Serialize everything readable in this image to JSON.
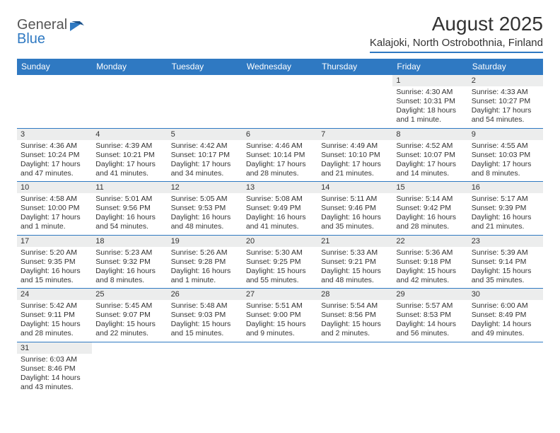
{
  "logo": {
    "general": "General",
    "blue": "Blue"
  },
  "title": "August 2025",
  "location": "Kalajoki, North Ostrobothnia, Finland",
  "colors": {
    "accent": "#2f79c2",
    "header_bg": "#2f79c2",
    "daynum_bg": "#eceded",
    "text": "#333333"
  },
  "day_headers": [
    "Sunday",
    "Monday",
    "Tuesday",
    "Wednesday",
    "Thursday",
    "Friday",
    "Saturday"
  ],
  "weeks": [
    [
      null,
      null,
      null,
      null,
      null,
      {
        "n": "1",
        "sr": "Sunrise: 4:30 AM",
        "ss": "Sunset: 10:31 PM",
        "dl": "Daylight: 18 hours and 1 minute."
      },
      {
        "n": "2",
        "sr": "Sunrise: 4:33 AM",
        "ss": "Sunset: 10:27 PM",
        "dl": "Daylight: 17 hours and 54 minutes."
      }
    ],
    [
      {
        "n": "3",
        "sr": "Sunrise: 4:36 AM",
        "ss": "Sunset: 10:24 PM",
        "dl": "Daylight: 17 hours and 47 minutes."
      },
      {
        "n": "4",
        "sr": "Sunrise: 4:39 AM",
        "ss": "Sunset: 10:21 PM",
        "dl": "Daylight: 17 hours and 41 minutes."
      },
      {
        "n": "5",
        "sr": "Sunrise: 4:42 AM",
        "ss": "Sunset: 10:17 PM",
        "dl": "Daylight: 17 hours and 34 minutes."
      },
      {
        "n": "6",
        "sr": "Sunrise: 4:46 AM",
        "ss": "Sunset: 10:14 PM",
        "dl": "Daylight: 17 hours and 28 minutes."
      },
      {
        "n": "7",
        "sr": "Sunrise: 4:49 AM",
        "ss": "Sunset: 10:10 PM",
        "dl": "Daylight: 17 hours and 21 minutes."
      },
      {
        "n": "8",
        "sr": "Sunrise: 4:52 AM",
        "ss": "Sunset: 10:07 PM",
        "dl": "Daylight: 17 hours and 14 minutes."
      },
      {
        "n": "9",
        "sr": "Sunrise: 4:55 AM",
        "ss": "Sunset: 10:03 PM",
        "dl": "Daylight: 17 hours and 8 minutes."
      }
    ],
    [
      {
        "n": "10",
        "sr": "Sunrise: 4:58 AM",
        "ss": "Sunset: 10:00 PM",
        "dl": "Daylight: 17 hours and 1 minute."
      },
      {
        "n": "11",
        "sr": "Sunrise: 5:01 AM",
        "ss": "Sunset: 9:56 PM",
        "dl": "Daylight: 16 hours and 54 minutes."
      },
      {
        "n": "12",
        "sr": "Sunrise: 5:05 AM",
        "ss": "Sunset: 9:53 PM",
        "dl": "Daylight: 16 hours and 48 minutes."
      },
      {
        "n": "13",
        "sr": "Sunrise: 5:08 AM",
        "ss": "Sunset: 9:49 PM",
        "dl": "Daylight: 16 hours and 41 minutes."
      },
      {
        "n": "14",
        "sr": "Sunrise: 5:11 AM",
        "ss": "Sunset: 9:46 PM",
        "dl": "Daylight: 16 hours and 35 minutes."
      },
      {
        "n": "15",
        "sr": "Sunrise: 5:14 AM",
        "ss": "Sunset: 9:42 PM",
        "dl": "Daylight: 16 hours and 28 minutes."
      },
      {
        "n": "16",
        "sr": "Sunrise: 5:17 AM",
        "ss": "Sunset: 9:39 PM",
        "dl": "Daylight: 16 hours and 21 minutes."
      }
    ],
    [
      {
        "n": "17",
        "sr": "Sunrise: 5:20 AM",
        "ss": "Sunset: 9:35 PM",
        "dl": "Daylight: 16 hours and 15 minutes."
      },
      {
        "n": "18",
        "sr": "Sunrise: 5:23 AM",
        "ss": "Sunset: 9:32 PM",
        "dl": "Daylight: 16 hours and 8 minutes."
      },
      {
        "n": "19",
        "sr": "Sunrise: 5:26 AM",
        "ss": "Sunset: 9:28 PM",
        "dl": "Daylight: 16 hours and 1 minute."
      },
      {
        "n": "20",
        "sr": "Sunrise: 5:30 AM",
        "ss": "Sunset: 9:25 PM",
        "dl": "Daylight: 15 hours and 55 minutes."
      },
      {
        "n": "21",
        "sr": "Sunrise: 5:33 AM",
        "ss": "Sunset: 9:21 PM",
        "dl": "Daylight: 15 hours and 48 minutes."
      },
      {
        "n": "22",
        "sr": "Sunrise: 5:36 AM",
        "ss": "Sunset: 9:18 PM",
        "dl": "Daylight: 15 hours and 42 minutes."
      },
      {
        "n": "23",
        "sr": "Sunrise: 5:39 AM",
        "ss": "Sunset: 9:14 PM",
        "dl": "Daylight: 15 hours and 35 minutes."
      }
    ],
    [
      {
        "n": "24",
        "sr": "Sunrise: 5:42 AM",
        "ss": "Sunset: 9:11 PM",
        "dl": "Daylight: 15 hours and 28 minutes."
      },
      {
        "n": "25",
        "sr": "Sunrise: 5:45 AM",
        "ss": "Sunset: 9:07 PM",
        "dl": "Daylight: 15 hours and 22 minutes."
      },
      {
        "n": "26",
        "sr": "Sunrise: 5:48 AM",
        "ss": "Sunset: 9:03 PM",
        "dl": "Daylight: 15 hours and 15 minutes."
      },
      {
        "n": "27",
        "sr": "Sunrise: 5:51 AM",
        "ss": "Sunset: 9:00 PM",
        "dl": "Daylight: 15 hours and 9 minutes."
      },
      {
        "n": "28",
        "sr": "Sunrise: 5:54 AM",
        "ss": "Sunset: 8:56 PM",
        "dl": "Daylight: 15 hours and 2 minutes."
      },
      {
        "n": "29",
        "sr": "Sunrise: 5:57 AM",
        "ss": "Sunset: 8:53 PM",
        "dl": "Daylight: 14 hours and 56 minutes."
      },
      {
        "n": "30",
        "sr": "Sunrise: 6:00 AM",
        "ss": "Sunset: 8:49 PM",
        "dl": "Daylight: 14 hours and 49 minutes."
      }
    ],
    [
      {
        "n": "31",
        "sr": "Sunrise: 6:03 AM",
        "ss": "Sunset: 8:46 PM",
        "dl": "Daylight: 14 hours and 43 minutes."
      },
      null,
      null,
      null,
      null,
      null,
      null
    ]
  ]
}
